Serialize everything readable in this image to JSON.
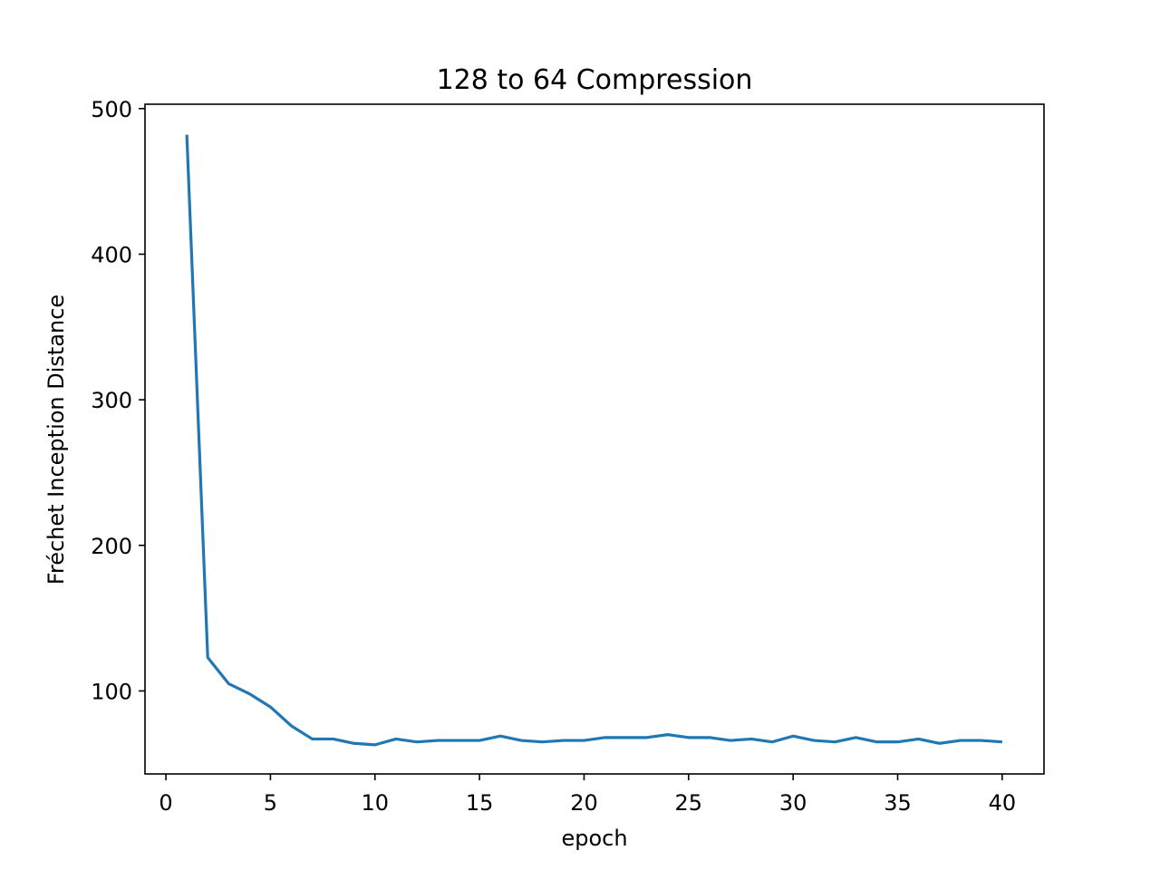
{
  "chart_data": {
    "type": "line",
    "title": "128 to 64 Compression",
    "xlabel": "epoch",
    "ylabel": "Fréchet Inception Distance",
    "xlim": [
      -1,
      42
    ],
    "ylim": [
      43,
      503
    ],
    "xticks": [
      0,
      5,
      10,
      15,
      20,
      25,
      30,
      35,
      40
    ],
    "yticks": [
      100,
      200,
      300,
      400,
      500
    ],
    "grid": false,
    "legend": "none",
    "series": [
      {
        "color": "#1f77b4",
        "x": [
          1,
          2,
          3,
          4,
          5,
          6,
          7,
          8,
          9,
          10,
          11,
          12,
          13,
          14,
          15,
          16,
          17,
          18,
          19,
          20,
          21,
          22,
          23,
          24,
          25,
          26,
          27,
          28,
          29,
          30,
          31,
          32,
          33,
          34,
          35,
          36,
          37,
          38,
          39,
          40
        ],
        "y": [
          482,
          123,
          105,
          98,
          89,
          76,
          67,
          67,
          64,
          63,
          67,
          65,
          66,
          66,
          66,
          69,
          66,
          65,
          66,
          66,
          68,
          68,
          68,
          70,
          68,
          68,
          66,
          67,
          65,
          69,
          66,
          65,
          68,
          65,
          65,
          67,
          64,
          66,
          66,
          65
        ]
      }
    ]
  }
}
